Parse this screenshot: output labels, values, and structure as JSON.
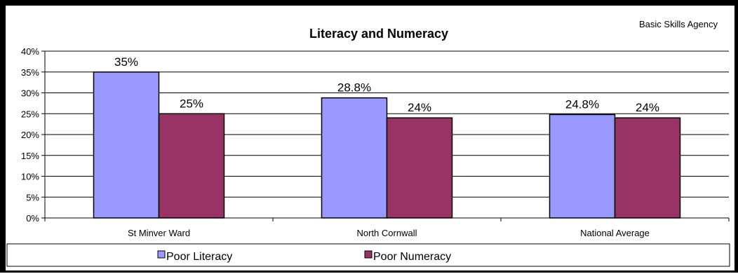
{
  "chart_data": {
    "type": "bar",
    "title": "Literacy and Numeracy",
    "source_note": "Basic Skills Agency",
    "categories": [
      "St Minver Ward",
      "North Cornwall",
      "National Average"
    ],
    "series": [
      {
        "name": "Poor Literacy",
        "values": [
          35,
          28.8,
          24.8
        ],
        "labels": [
          "35%",
          "28.8%",
          "24.8%"
        ],
        "color": "#9999ff"
      },
      {
        "name": "Poor Numeracy",
        "values": [
          25,
          24,
          24
        ],
        "labels": [
          "25%",
          "24%",
          "24%"
        ],
        "color": "#993366"
      }
    ],
    "ylim": [
      0,
      40
    ],
    "yticks": [
      "0%",
      "5%",
      "10%",
      "15%",
      "20%",
      "25%",
      "30%",
      "35%",
      "40%"
    ],
    "grid": true,
    "legend_position": "bottom"
  }
}
